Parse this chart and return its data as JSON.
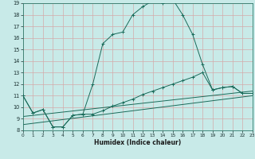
{
  "xlabel": "Humidex (Indice chaleur)",
  "bg_color": "#c8eae8",
  "grid_color": "#d4aaaa",
  "line_color": "#1a6b5a",
  "xlim": [
    0,
    23
  ],
  "ylim": [
    8,
    19
  ],
  "yticks": [
    8,
    9,
    10,
    11,
    12,
    13,
    14,
    15,
    16,
    17,
    18,
    19
  ],
  "xticks": [
    0,
    1,
    2,
    3,
    4,
    5,
    6,
    7,
    8,
    9,
    10,
    11,
    12,
    13,
    14,
    15,
    16,
    17,
    18,
    19,
    20,
    21,
    22,
    23
  ],
  "curve1_x": [
    0,
    1,
    2,
    3,
    4,
    5,
    6,
    7,
    8,
    9,
    10,
    11,
    12,
    13,
    14,
    15,
    16,
    17,
    18,
    19,
    20,
    21,
    22,
    23
  ],
  "curve1_y": [
    11.0,
    9.5,
    9.8,
    8.3,
    8.3,
    9.3,
    9.4,
    12.0,
    15.5,
    16.3,
    16.5,
    18.0,
    18.7,
    19.2,
    19.0,
    19.35,
    18.0,
    16.3,
    13.7,
    11.5,
    11.7,
    11.8,
    11.2,
    11.2
  ],
  "curve2_x": [
    0,
    1,
    2,
    3,
    4,
    5,
    6,
    7,
    8,
    9,
    10,
    11,
    12,
    13,
    14,
    15,
    16,
    17,
    18,
    19,
    20,
    21,
    22,
    23
  ],
  "curve2_y": [
    11.0,
    9.5,
    9.8,
    8.3,
    8.3,
    9.3,
    9.4,
    9.4,
    9.7,
    10.1,
    10.4,
    10.7,
    11.1,
    11.4,
    11.7,
    12.0,
    12.3,
    12.6,
    13.0,
    11.5,
    11.7,
    11.8,
    11.2,
    11.2
  ],
  "line3_endpoints": [
    [
      0,
      8.5
    ],
    [
      23,
      11.0
    ]
  ],
  "line4_endpoints": [
    [
      0,
      9.2
    ],
    [
      23,
      11.4
    ]
  ]
}
